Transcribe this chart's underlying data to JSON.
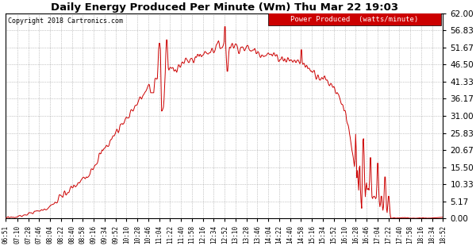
{
  "title": "Daily Energy Produced Per Minute (Wm) Thu Mar 22 19:03",
  "copyright": "Copyright 2018 Cartronics.com",
  "legend_text": "Power Produced  (watts/minute)",
  "legend_bg": "#cc0000",
  "legend_fg": "#ffffff",
  "line_color": "#cc0000",
  "background_color": "#ffffff",
  "grid_color": "#999999",
  "yticks": [
    0.0,
    5.17,
    10.33,
    15.5,
    20.67,
    25.83,
    31.0,
    36.17,
    41.33,
    46.5,
    51.67,
    56.83,
    62.0
  ],
  "ymax": 62.0,
  "ymin": 0.0,
  "xtick_labels": [
    "06:51",
    "07:10",
    "07:28",
    "07:46",
    "08:04",
    "08:22",
    "08:40",
    "08:58",
    "09:16",
    "09:34",
    "09:52",
    "10:10",
    "10:28",
    "10:46",
    "11:04",
    "11:22",
    "11:40",
    "11:58",
    "12:16",
    "12:34",
    "12:52",
    "13:10",
    "13:28",
    "13:46",
    "14:04",
    "14:22",
    "14:40",
    "14:58",
    "15:16",
    "15:34",
    "15:52",
    "16:10",
    "16:28",
    "16:46",
    "17:04",
    "17:22",
    "17:40",
    "17:58",
    "18:16",
    "18:34",
    "18:52"
  ]
}
